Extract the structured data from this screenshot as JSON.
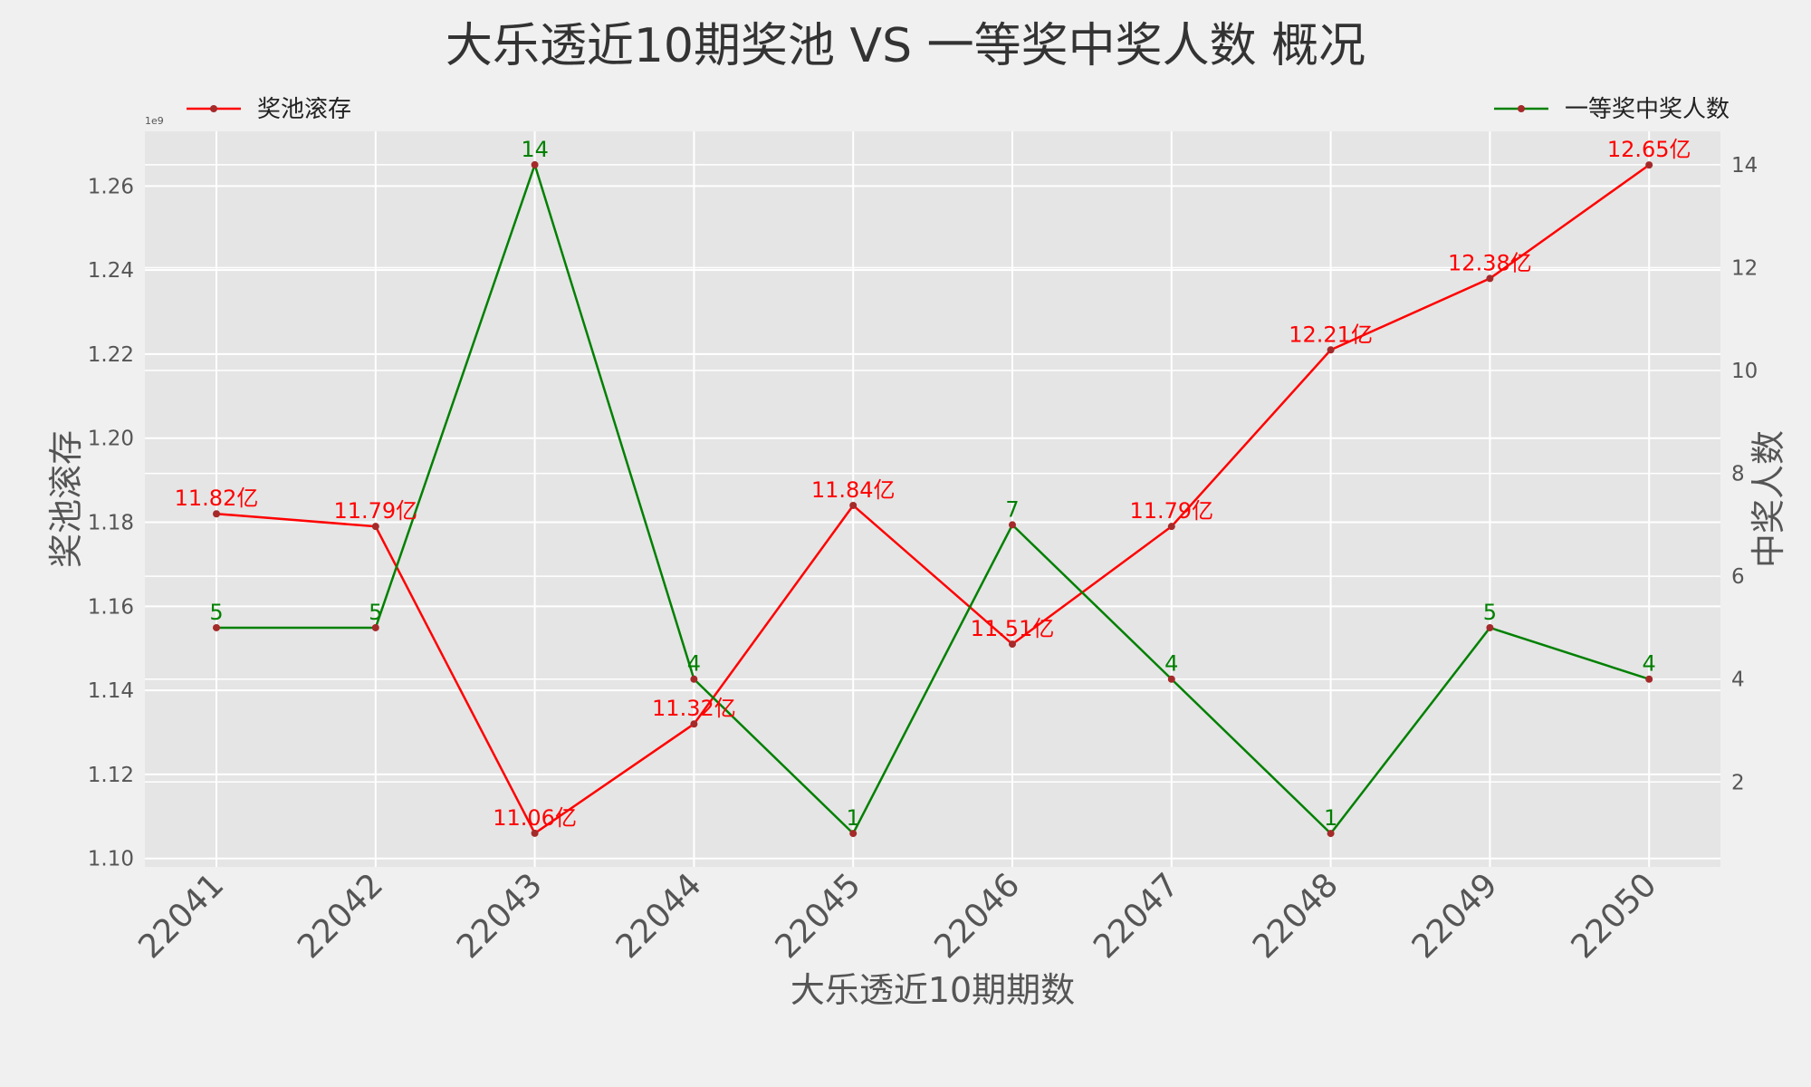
{
  "chart_data": {
    "type": "line",
    "title": "大乐透近10期奖池 VS 一等奖中奖人数 概况",
    "xlabel": "大乐透近10期期数",
    "ylabel_left": "奖池滚存",
    "ylabel_right": "中奖人数",
    "left_axis_offset_label": "1e9",
    "categories": [
      "22041",
      "22042",
      "22043",
      "22044",
      "22045",
      "22046",
      "22047",
      "22048",
      "22049",
      "22050"
    ],
    "ylim_left": [
      1.098,
      1.273
    ],
    "yticks_left": [
      "1.10",
      "1.12",
      "1.14",
      "1.16",
      "1.18",
      "1.20",
      "1.22",
      "1.24",
      "1.26"
    ],
    "ylim_right": [
      0.35,
      14.65
    ],
    "yticks_right": [
      "2",
      "4",
      "6",
      "8",
      "10",
      "12",
      "14"
    ],
    "grid": true,
    "series": [
      {
        "name": "奖池滚存",
        "axis": "left",
        "color": "#ff0000",
        "values": [
          1.182,
          1.179,
          1.106,
          1.132,
          1.184,
          1.151,
          1.179,
          1.221,
          1.238,
          1.265
        ],
        "labels": [
          "11.82亿",
          "11.79亿",
          "11.06亿",
          "11.32亿",
          "11.84亿",
          "11.51亿",
          "11.79亿",
          "12.21亿",
          "12.38亿",
          "12.65亿"
        ]
      },
      {
        "name": "一等奖中奖人数",
        "axis": "right",
        "color": "#008000",
        "values": [
          5,
          5,
          14,
          4,
          1,
          7,
          4,
          1,
          5,
          4
        ],
        "labels": [
          "5",
          "5",
          "14",
          "4",
          "1",
          "7",
          "4",
          "1",
          "5",
          "4"
        ]
      }
    ],
    "legend": {
      "pool_placement": "top-left",
      "winners_placement": "top-right"
    }
  }
}
